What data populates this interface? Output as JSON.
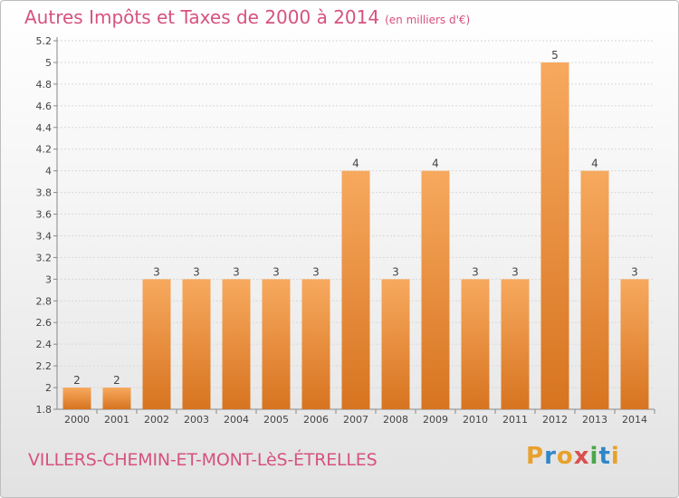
{
  "title": "Autres Impôts et Taxes de 2000 à 2014",
  "subtitle": "(en milliers d'€)",
  "city": "VILLERS-CHEMIN-ET-MONT-LèS-ÉTRELLES",
  "logo": {
    "letters": [
      "P",
      "r",
      "o",
      "x",
      "i",
      "t",
      "i"
    ],
    "colors": [
      "#e8a12a",
      "#2f87c8",
      "#e8a12a",
      "#d94f4f",
      "#4aa64a",
      "#2f87c8",
      "#e8a12a"
    ]
  },
  "colors": {
    "bar": "#f0903a",
    "bar_light": "#f7a95e",
    "bar_dark": "#d77420",
    "title": "#d6527f"
  },
  "chart_data": {
    "type": "bar",
    "categories": [
      "2000",
      "2001",
      "2002",
      "2003",
      "2004",
      "2005",
      "2006",
      "2007",
      "2008",
      "2009",
      "2010",
      "2011",
      "2012",
      "2013",
      "2014"
    ],
    "values": [
      2,
      2,
      3,
      3,
      3,
      3,
      3,
      4,
      3,
      4,
      3,
      3,
      5,
      4,
      3
    ],
    "data_labels": [
      "2",
      "2",
      "3",
      "3",
      "3",
      "3",
      "3",
      "4",
      "3",
      "4",
      "3",
      "3",
      "5",
      "4",
      "3"
    ],
    "y_ticks": [
      "1.8",
      "2",
      "2.2",
      "2.4",
      "2.6",
      "2.8",
      "3",
      "3.2",
      "3.4",
      "3.6",
      "3.8",
      "4",
      "4.2",
      "4.4",
      "4.6",
      "4.8",
      "5",
      "5.2"
    ],
    "y_tick_values": [
      1.8,
      2.0,
      2.2,
      2.4,
      2.6,
      2.8,
      3.0,
      3.2,
      3.4,
      3.6,
      3.8,
      4.0,
      4.2,
      4.4,
      4.6,
      4.8,
      5.0,
      5.2
    ],
    "ylim": [
      1.8,
      5.2
    ],
    "xlabel": "",
    "ylabel": "",
    "grid": true
  }
}
